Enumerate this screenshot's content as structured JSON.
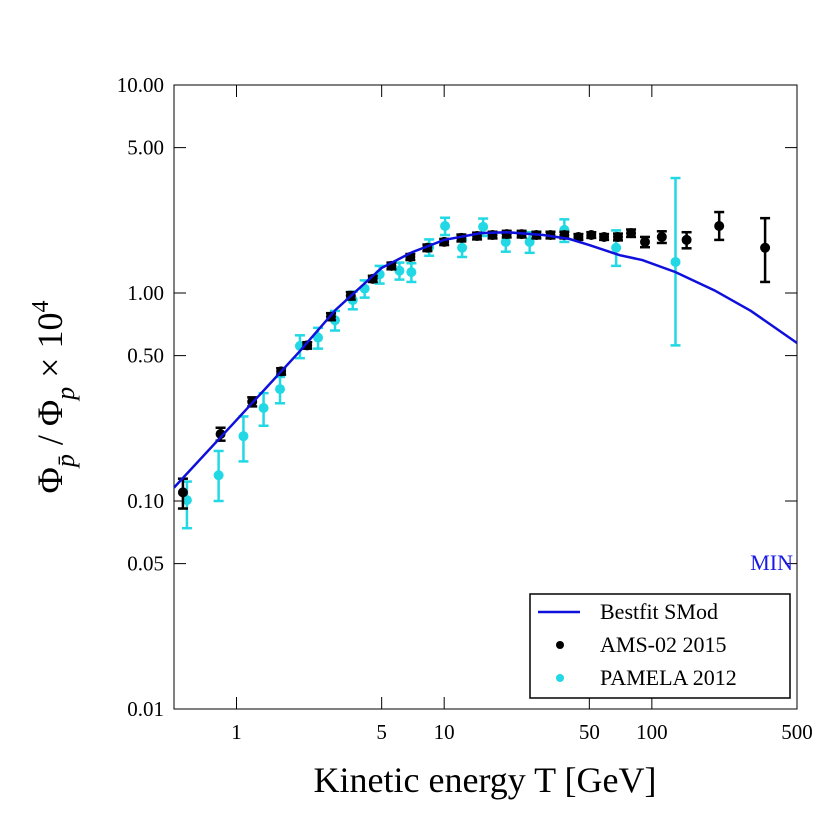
{
  "chart_data": {
    "type": "scatter",
    "xlabel": "Kinetic energy T [GeV]",
    "ylabel": {
      "parts": [
        "Φ",
        "p̄",
        " / Φ",
        "p",
        " × 10",
        "4"
      ]
    },
    "xscale": "log",
    "yscale": "log",
    "xlim": [
      0.5,
      500
    ],
    "ylim": [
      0.01,
      10
    ],
    "xticks": [
      1,
      5,
      10,
      50,
      100,
      500
    ],
    "yticks": [
      {
        "value": 10,
        "label": "10.00"
      },
      {
        "value": 5,
        "label": "5.00"
      },
      {
        "value": 1,
        "label": "1.00"
      },
      {
        "value": 0.5,
        "label": "0.50"
      },
      {
        "value": 0.1,
        "label": "0.10"
      },
      {
        "value": 0.05,
        "label": "0.05"
      },
      {
        "value": 0.01,
        "label": "0.01"
      }
    ],
    "legend": "lower right",
    "annotation": {
      "text": "MIN",
      "color": "#1a1ae6"
    },
    "series": [
      {
        "name": "Bestfit SMod",
        "kind": "line",
        "color": "#1010dd",
        "x": [
          0.5,
          1,
          2,
          3,
          5,
          7,
          10,
          15,
          20,
          30,
          40,
          50,
          70,
          90,
          130,
          200,
          300,
          500
        ],
        "values": [
          0.116,
          0.245,
          0.52,
          0.83,
          1.32,
          1.57,
          1.8,
          1.94,
          1.96,
          1.9,
          1.82,
          1.7,
          1.52,
          1.44,
          1.26,
          1.03,
          0.82,
          0.575
        ]
      },
      {
        "name": "AMS-02 2015",
        "kind": "points",
        "color": "#000000",
        "x": [
          0.552,
          0.838,
          1.19,
          1.64,
          2.19,
          2.85,
          3.55,
          4.53,
          5.57,
          6.87,
          8.3,
          10,
          12.1,
          14.4,
          17.1,
          20,
          23.6,
          27.8,
          32.5,
          37.9,
          44.3,
          51.1,
          58.9,
          68.7,
          79.4,
          92.7,
          111.7,
          147,
          211,
          351
        ],
        "values": [
          0.11,
          0.21,
          0.3,
          0.42,
          0.56,
          0.77,
          0.97,
          1.17,
          1.35,
          1.49,
          1.65,
          1.76,
          1.84,
          1.88,
          1.9,
          1.92,
          1.92,
          1.9,
          1.9,
          1.9,
          1.86,
          1.9,
          1.86,
          1.86,
          1.94,
          1.76,
          1.86,
          1.8,
          2.1,
          1.65
        ],
        "errors_minus": [
          0.018,
          0.015,
          0.015,
          0.015,
          0.02,
          0.03,
          0.04,
          0.04,
          0.05,
          0.05,
          0.06,
          0.06,
          0.07,
          0.07,
          0.07,
          0.07,
          0.07,
          0.07,
          0.07,
          0.07,
          0.06,
          0.06,
          0.06,
          0.07,
          0.08,
          0.1,
          0.12,
          0.16,
          0.3,
          0.52
        ],
        "errors_plus": [
          0.018,
          0.015,
          0.015,
          0.015,
          0.02,
          0.03,
          0.04,
          0.04,
          0.05,
          0.05,
          0.06,
          0.06,
          0.07,
          0.07,
          0.07,
          0.07,
          0.07,
          0.07,
          0.07,
          0.07,
          0.06,
          0.06,
          0.06,
          0.07,
          0.08,
          0.1,
          0.12,
          0.16,
          0.35,
          0.64
        ]
      },
      {
        "name": "PAMELA 2012",
        "kind": "points",
        "color": "#22d8e4",
        "x": [
          0.577,
          0.82,
          1.08,
          1.35,
          1.62,
          2.02,
          2.47,
          2.98,
          3.63,
          4.14,
          4.89,
          6.09,
          6.95,
          8.47,
          10.1,
          12.2,
          15.4,
          19.8,
          25.8,
          37.9,
          67.3,
          130
        ],
        "values": [
          0.101,
          0.133,
          0.205,
          0.28,
          0.345,
          0.556,
          0.61,
          0.74,
          0.925,
          1.05,
          1.23,
          1.28,
          1.26,
          1.66,
          2.1,
          1.65,
          2.08,
          1.76,
          1.76,
          2.01,
          1.65,
          1.41
        ],
        "errors_minus": [
          0.027,
          0.033,
          0.05,
          0.05,
          0.05,
          0.07,
          0.07,
          0.08,
          0.09,
          0.1,
          0.12,
          0.12,
          0.13,
          0.15,
          0.2,
          0.16,
          0.2,
          0.18,
          0.2,
          0.25,
          0.3,
          0.85
        ],
        "errors_plus": [
          0.023,
          0.041,
          0.05,
          0.05,
          0.05,
          0.07,
          0.07,
          0.08,
          0.09,
          0.1,
          0.12,
          0.12,
          0.13,
          0.15,
          0.2,
          0.16,
          0.2,
          0.18,
          0.2,
          0.25,
          0.35,
          2.16
        ]
      }
    ]
  }
}
